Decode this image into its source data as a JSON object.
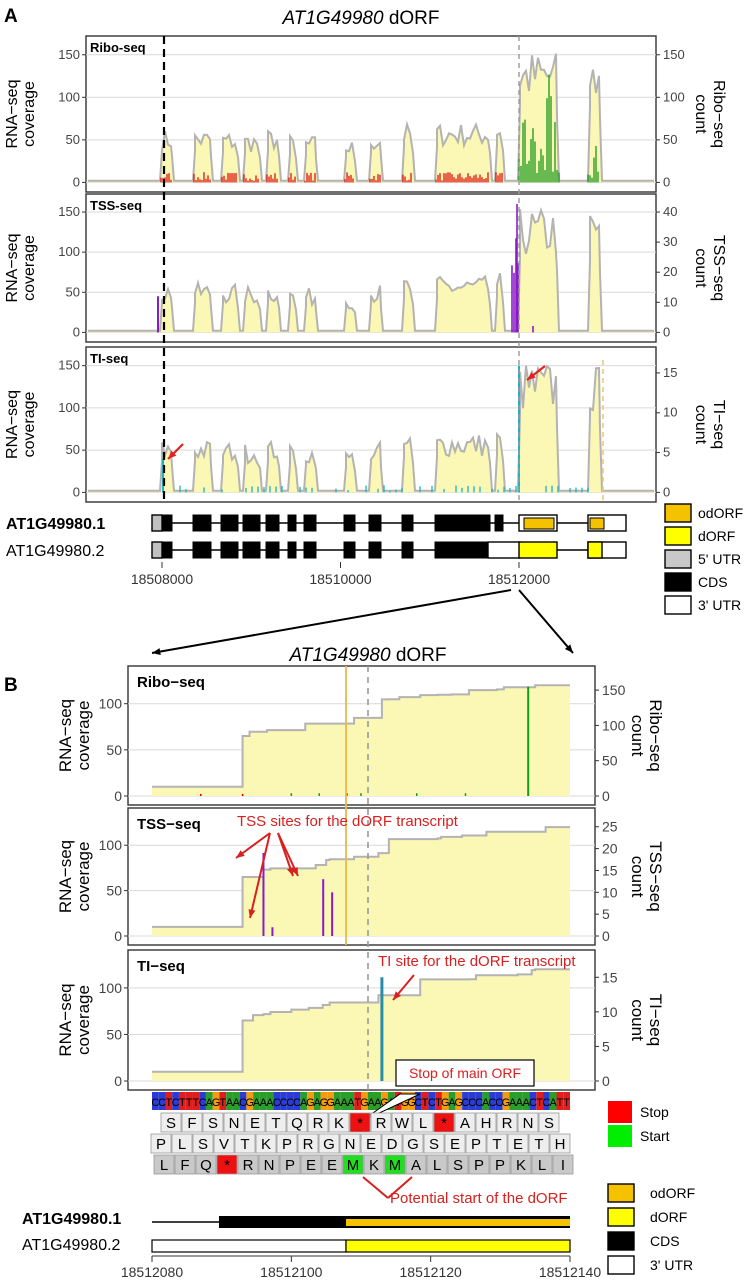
{
  "panelA": {
    "letter": "A",
    "title_gene": "AT1G49980",
    "title_suffix": " dORF",
    "left_axis_label": [
      "RNA−seq",
      "coverage"
    ],
    "tracks": [
      {
        "key": "ribo",
        "label": "Ribo-seq",
        "right_label": [
          "Ribo−seq",
          "count"
        ],
        "left_ticks": [
          "0",
          "50",
          "100",
          "150"
        ],
        "right_ticks": [
          "0",
          "50",
          "100",
          "150"
        ]
      },
      {
        "key": "tss",
        "label": "TSS-seq",
        "right_label": [
          "TSS−seq",
          "count"
        ],
        "left_ticks": [
          "0",
          "50",
          "100",
          "150"
        ],
        "right_ticks": [
          "0",
          "10",
          "20",
          "30",
          "40"
        ]
      },
      {
        "key": "ti",
        "label": "TI-seq",
        "right_label": [
          "TI−seq",
          "count"
        ],
        "left_ticks": [
          "0",
          "50",
          "100",
          "150"
        ],
        "right_ticks": [
          "0",
          "5",
          "10",
          "15"
        ]
      }
    ],
    "transcripts": [
      "AT1G49980.1",
      "AT1G49980.2"
    ],
    "x_ticks": [
      "18508000",
      "18510000",
      "18512000"
    ],
    "legend": [
      {
        "label": "odORF",
        "color": "#f5c200"
      },
      {
        "label": "dORF",
        "color": "#ffff00"
      },
      {
        "label": "5' UTR",
        "color": "#c8c8c8"
      },
      {
        "label": "CDS",
        "color": "#000000"
      },
      {
        "label": "3' UTR",
        "color": "#ffffff"
      }
    ]
  },
  "panelB": {
    "letter": "B",
    "title_gene": "AT1G49980",
    "title_suffix": " dORF",
    "left_axis_label": [
      "RNA−seq",
      "coverage"
    ],
    "tracks": [
      {
        "key": "ribo",
        "label": "Ribo−seq",
        "right_label": [
          "Ribo−seq",
          "count"
        ],
        "left_ticks": [
          "0",
          "50",
          "100"
        ],
        "right_ticks": [
          "0",
          "50",
          "100",
          "150"
        ]
      },
      {
        "key": "tss",
        "label": "TSS−seq",
        "right_label": [
          "TSS−seq",
          "count"
        ],
        "left_ticks": [
          "0",
          "50",
          "100"
        ],
        "right_ticks": [
          "0",
          "5",
          "10",
          "15",
          "20",
          "25"
        ]
      },
      {
        "key": "ti",
        "label": "TI−seq",
        "right_label": [
          "TI−seq",
          "count"
        ],
        "left_ticks": [
          "0",
          "50",
          "100"
        ],
        "right_ticks": [
          "0",
          "5",
          "10",
          "15"
        ]
      }
    ],
    "annotations": {
      "tss_sites": "TSS sites for the dORF transcript",
      "ti_site": "TI site for the dORF transcript",
      "stop_main": "Stop of main ORF",
      "potential_start": "Potential start of the dORF"
    },
    "sequence": "CCTCTTTCAGTAACGAAACCCCAGAGGAAATGAAGATGGCTCTGAGCCCACCGAAACTCATT",
    "frames": [
      [
        "S",
        "F",
        "S",
        "N",
        "E",
        "T",
        "Q",
        "R",
        "K",
        "*",
        "R",
        "W",
        "L",
        "*",
        "A",
        "H",
        "R",
        "N",
        "S"
      ],
      [
        "P",
        "L",
        "S",
        "V",
        "T",
        "K",
        "P",
        "R",
        "G",
        "N",
        "E",
        "D",
        "G",
        "S",
        "E",
        "P",
        "T",
        "E",
        "T",
        "H"
      ],
      [
        "L",
        "F",
        "Q",
        "*",
        "R",
        "N",
        "P",
        "E",
        "E",
        "M",
        "K",
        "M",
        "A",
        "L",
        "S",
        "P",
        "P",
        "K",
        "L",
        "I"
      ]
    ],
    "codon_legend": [
      {
        "label": "Stop",
        "color": "#ff0000"
      },
      {
        "label": "Start",
        "color": "#00ee00"
      }
    ],
    "transcripts": [
      "AT1G49980.1",
      "AT1G49980.2"
    ],
    "x_ticks": [
      "18512080",
      "18512100",
      "18512120",
      "18512140"
    ],
    "legend": [
      {
        "label": "odORF",
        "color": "#f5c200"
      },
      {
        "label": "dORF",
        "color": "#ffff00"
      },
      {
        "label": "CDS",
        "color": "#000000"
      },
      {
        "label": "3' UTR",
        "color": "#ffffff"
      }
    ]
  },
  "chart_data": [
    {
      "type": "area",
      "title": "AT1G49980 dORF",
      "ylabel": "RNA−seq coverage",
      "ylim": [
        0,
        165
      ],
      "x_ticks": [
        18508000,
        18510000,
        18512000
      ],
      "series": [
        {
          "name": "Ribo-seq",
          "y_right_ticks": [
            0,
            50,
            100,
            150
          ]
        },
        {
          "name": "TSS-seq",
          "y_right_ticks": [
            0,
            10,
            20,
            30,
            40
          ]
        },
        {
          "name": "TI-seq",
          "y_right_ticks": [
            0,
            5,
            10,
            15
          ]
        }
      ]
    },
    {
      "type": "area",
      "title": "AT1G49980 dORF",
      "ylabel": "RNA−seq coverage",
      "xlim": [
        18512080,
        18512140
      ],
      "x": [
        18512080,
        18512092,
        18512094,
        18512100,
        18512105,
        18512110,
        18512115,
        18512120,
        18512130,
        18512140
      ],
      "series": [
        {
          "name": "Ribo−seq",
          "values": [
            10,
            10,
            65,
            72,
            80,
            88,
            100,
            112,
            115,
            118
          ],
          "counts_x": [
            18512108,
            18512134
          ],
          "counts_y": [
            5,
            155
          ]
        },
        {
          "name": "TSS−seq",
          "values": [
            10,
            10,
            65,
            72,
            80,
            90,
            105,
            113,
            116,
            118
          ],
          "counts_x": [
            18512096,
            18512097,
            18512104,
            18512105
          ],
          "counts_y": [
            19,
            2,
            13,
            10
          ]
        },
        {
          "name": "TI−seq",
          "values": [
            10,
            10,
            65,
            72,
            80,
            90,
            105,
            113,
            116,
            118
          ],
          "counts_x": [
            18512113
          ],
          "counts_y": [
            15
          ]
        }
      ]
    }
  ]
}
